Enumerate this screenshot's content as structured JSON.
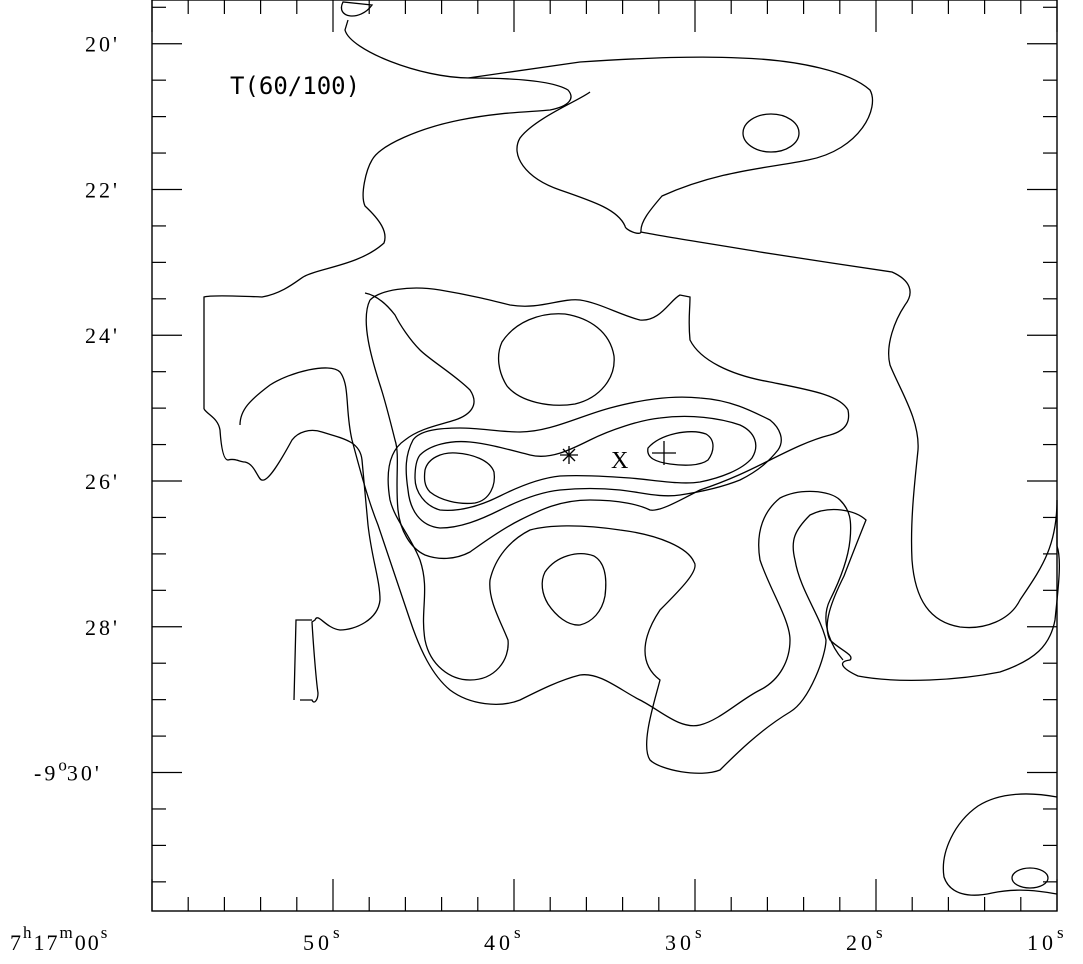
{
  "chart_data": {
    "type": "contour",
    "title": "T(60/100)",
    "xlabel": "",
    "ylabel": "",
    "x_axis": {
      "quantity": "right ascension (seconds, 7h17m)",
      "range": [
        60,
        10
      ],
      "ticks": [
        {
          "value": 60,
          "label": {
            "base": "7",
            "sup1": "h",
            "mid": "17",
            "sup2": "m",
            "mid2": "00",
            "sup3": "s"
          }
        },
        {
          "value": 50,
          "label": {
            "base": "50",
            "sup": "s"
          }
        },
        {
          "value": 40,
          "label": {
            "base": "40",
            "sup": "s"
          }
        },
        {
          "value": 30,
          "label": {
            "base": "30",
            "sup": "s"
          }
        },
        {
          "value": 20,
          "label": {
            "base": "20",
            "sup": "s"
          }
        },
        {
          "value": 10,
          "label": {
            "base": "10",
            "sup": "s"
          }
        }
      ]
    },
    "y_axis": {
      "quantity": "declination (arcmin, -9 deg)",
      "range": [
        31.9,
        19.4
      ],
      "ticks": [
        {
          "value": 20,
          "label": "20'"
        },
        {
          "value": 22,
          "label": "22'"
        },
        {
          "value": 24,
          "label": "24'"
        },
        {
          "value": 26,
          "label": "26'"
        },
        {
          "value": 28,
          "label": "28'"
        },
        {
          "value": 30,
          "label": {
            "pre": "-9",
            "sup": "o",
            "post": "30'"
          }
        }
      ]
    },
    "markers": [
      {
        "symbol": "*",
        "ra_s": 37.0,
        "dec_arcmin": 25.5
      },
      {
        "symbol": "+",
        "ra_s": 32.0,
        "dec_arcmin": 25.5
      },
      {
        "symbol": "X",
        "ra_s": 34.2,
        "dec_arcmin": 25.5,
        "text": "X"
      }
    ],
    "contours": [
      {
        "level": 1,
        "ra_s": [
          58.3,
          57.6,
          56.5,
          54.5,
          53.6,
          53.8,
          51.5,
          50.7,
          50.6,
          47.2,
          45.6,
          43.4,
          41.4,
          41.0,
          42.6,
          40.6,
          38.2,
          36.8,
          36.2,
          34.6,
          34.6,
          35.2,
          33.2,
          31.4,
          30.6,
          28.4,
          23.8,
          21.6,
          20.0,
          19.0,
          18.4,
          17.6,
          15.4,
          14.8,
          13.2,
          10.2,
          10.0,
          10.3,
          12.5,
          14.0,
          16.2,
          19.4,
          21.8,
          22.4,
          22.4,
          20.6,
          19.6,
          19.2,
          17.0,
          16.2,
          16.8,
          18.0,
          17.8,
          19.0,
          21.2,
          22.6,
          24.8,
          25.6,
          26.6,
          26.7,
          28.2,
          30.4,
          31.4,
          33.6,
          34.8,
          38.2,
          39.2,
          40.8,
          44.2,
          46.8,
          47.6,
          48.4,
          52.4,
          54.4,
          55.7,
          56.2,
          56.8,
          57.0,
          58.0,
          58.4,
          58.6,
          58.4,
          58.3
        ],
        "dec_arcmin": [
          24.8,
          24.1,
          23.7,
          23.6,
          23.3,
          22.6,
          21.5,
          21.2,
          20.4,
          20.0,
          20.0,
          20.1,
          20.4,
          20.7,
          21.3,
          21.8,
          22.3,
          22.5,
          22.1,
          21.5,
          21.0,
          20.6,
          20.3,
          20.3,
          20.4,
          20.4,
          20.7,
          21.1,
          21.6,
          22.2,
          22.6,
          23.4,
          23.9,
          24.4,
          24.8,
          25.5,
          26.5,
          26.9,
          27.6,
          28.0,
          28.4,
          28.5,
          28.6,
          28.3,
          27.8,
          27.3,
          26.8,
          26.4,
          26.0,
          25.5,
          25.0,
          24.5,
          24.2,
          23.7,
          23.3,
          23.1,
          22.9,
          22.6,
          22.2,
          21.9,
          22.2,
          22.4,
          22.4,
          22.5,
          22.8,
          23.0,
          23.3,
          23.6,
          23.8,
          23.9,
          24.0,
          24.1,
          24.6,
          25.0,
          25.2,
          25.4,
          25.6,
          25.8,
          26.0,
          25.7,
          25.2,
          24.8,
          24.8
        ]
      },
      {
        "level": 1,
        "ra_s": [
          53.2,
          51.8,
          51.4,
          51.2,
          50.4,
          47.6,
          46.2,
          45.8,
          45.2,
          44.4,
          43.8,
          42.4,
          40.7,
          38.2,
          36.4,
          34.8,
          33.2,
          32.6,
          32.2,
          31.8,
          30.8,
          29.4,
          28.2,
          28.0,
          28.2,
          27.4,
          26.8,
          26.4,
          25.2,
          24.2,
          23.8,
          24.2,
          22.8,
          22.2,
          20.8,
          20.4,
          21.6,
          23.6,
          25.0,
          26.0,
          26.2,
          26.2,
          27.6,
          28.7,
          27.6,
          25.6,
          24.0,
          23.0,
          22.6,
          22.0,
          21.6,
          20.0,
          18.8,
          17.2,
          15.4,
          14.8,
          12.4,
          11.4,
          10.6,
          10.3,
          10.5,
          12.8,
          13.4,
          15.3,
          18.6,
          21.3,
          22.1,
          22.6,
          23.1,
          25.4,
          28.0,
          30.2,
          33.8,
          36.8,
          40.0,
          43.4,
          46.0,
          46.2,
          48.0,
          50.8,
          52.0,
          52.8,
          53.2
        ],
        "dec_arcmin": [
          28.8,
          28.6,
          29.3,
          29.2,
          28.9,
          28.6,
          28.6,
          28.7,
          28.4,
          28.0,
          27.6,
          27.2,
          27.0,
          27.0,
          27.2,
          27.4,
          27.9,
          28.2,
          28.5,
          28.8,
          29.0,
          29.0,
          28.6,
          28.2,
          27.5,
          27.0,
          26.5,
          26.1,
          25.8,
          25.5,
          25.0,
          24.3,
          23.6,
          23.4,
          23.3,
          22.9,
          22.4,
          22.2,
          22.4,
          22.6,
          23.0,
          23.4,
          23.8,
          24.1,
          24.5,
          25.0,
          25.5,
          25.9,
          26.3,
          26.7,
          27.1,
          27.5,
          27.9,
          28.2,
          28.2,
          28.1,
          28.2,
          28.3,
          28.1,
          27.7,
          27.3,
          27.6,
          28.0,
          28.4,
          28.9,
          29.1,
          29.3,
          29.6,
          29.9,
          29.9,
          29.8,
          29.6,
          29.3,
          29.1,
          29.0,
          28.9,
          28.9,
          28.7,
          28.4,
          28.5,
          28.7,
          29.0,
          28.8
        ]
      }
    ]
  }
}
